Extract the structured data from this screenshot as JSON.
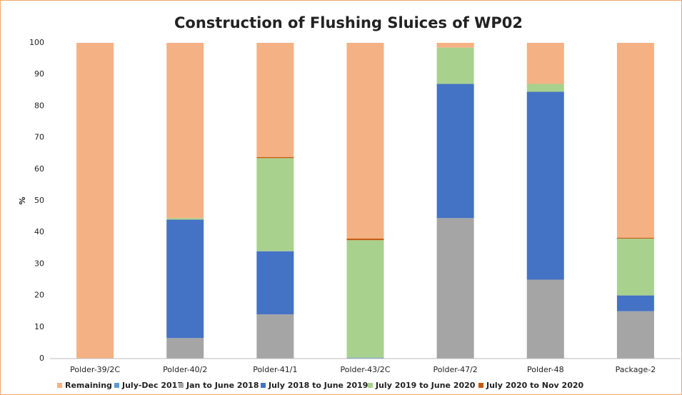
{
  "chart_data": {
    "type": "stacked-bar",
    "title": "Construction of Flushing Sluices of WP02",
    "y_label": "%",
    "categories": [
      "Polder-39/2C",
      "Polder-40/2",
      "Polder-41/1",
      "Polder-43/2C",
      "Polder-47/2",
      "Polder-48",
      "Package-2"
    ],
    "series": [
      {
        "name": "Remaining",
        "color": "#f4b183",
        "values": [
          100,
          55.5,
          36.2,
          62,
          1.5,
          13,
          61.7
        ]
      },
      {
        "name": "July-Dec 2017",
        "color": "#5b9bd5",
        "values": [
          0,
          0,
          0,
          0.3,
          0,
          0,
          0
        ]
      },
      {
        "name": "Jan  to June 2018",
        "color": "#a5a5a5",
        "values": [
          0,
          6.5,
          14,
          0,
          44.5,
          25,
          15
        ]
      },
      {
        "name": "July 2018 to June 2019",
        "color": "#4472c4",
        "values": [
          0,
          37.5,
          20,
          0,
          42.5,
          59.5,
          5
        ]
      },
      {
        "name": "July 2019 to June 2020",
        "color": "#a9d18e",
        "values": [
          0,
          0.5,
          29.5,
          37.2,
          11.5,
          2.5,
          18
        ]
      },
      {
        "name": "July 2020 to Nov 2020",
        "color": "#c55a11",
        "values": [
          0,
          0,
          0.3,
          0.5,
          0,
          0,
          0.3
        ]
      }
    ],
    "ylim": [
      0,
      100
    ],
    "yticks": [
      0,
      10,
      20,
      30,
      40,
      50,
      60,
      70,
      80,
      90,
      100
    ],
    "grid": false,
    "legend": "bottom"
  }
}
